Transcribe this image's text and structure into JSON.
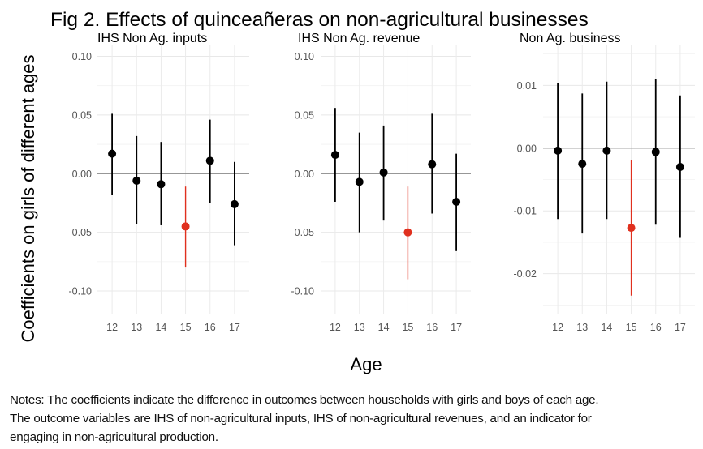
{
  "chart_data": {
    "type": "scatter",
    "subtype": "coefficient-plot-with-confidence-intervals",
    "title": "Fig 2. Effects of quinceañeras on non-agricultural businesses",
    "xlabel": "Age",
    "ylabel": "Coefficients on girls of different ages",
    "highlight_color": "#e0301e",
    "default_color": "#000000",
    "highlight_category": 15,
    "panels": [
      {
        "title": "IHS Non Ag. inputs",
        "x": [
          12,
          13,
          14,
          15,
          16,
          17
        ],
        "ylim": [
          -0.12,
          0.11
        ],
        "yticks": [
          0.1,
          0.05,
          0.0,
          -0.05,
          -0.1
        ],
        "ytick_labels": [
          "0.10",
          "0.05",
          "0.00",
          "-0.05",
          "-0.10"
        ],
        "estimate": [
          0.017,
          -0.006,
          -0.009,
          -0.045,
          0.011,
          -0.026
        ],
        "ci_low": [
          -0.018,
          -0.043,
          -0.044,
          -0.08,
          -0.025,
          -0.061
        ],
        "ci_high": [
          0.051,
          0.032,
          0.027,
          -0.011,
          0.046,
          0.01
        ]
      },
      {
        "title": "IHS Non Ag. revenue",
        "x": [
          12,
          13,
          14,
          15,
          16,
          17
        ],
        "ylim": [
          -0.12,
          0.11
        ],
        "yticks": [
          0.1,
          0.05,
          0.0,
          -0.05,
          -0.1
        ],
        "ytick_labels": [
          "0.10",
          "0.05",
          "0.00",
          "-0.05",
          "-0.10"
        ],
        "estimate": [
          0.016,
          -0.007,
          0.001,
          -0.05,
          0.008,
          -0.024
        ],
        "ci_low": [
          -0.024,
          -0.05,
          -0.04,
          -0.09,
          -0.034,
          -0.066
        ],
        "ci_high": [
          0.056,
          0.035,
          0.041,
          -0.011,
          0.051,
          0.017
        ]
      },
      {
        "title": "Non Ag. business",
        "x": [
          12,
          13,
          14,
          15,
          16,
          17
        ],
        "ylim": [
          -0.0265,
          0.0165
        ],
        "yticks": [
          0.01,
          0.0,
          -0.01,
          -0.02
        ],
        "ytick_labels": [
          "0.01",
          "0.00",
          "-0.01",
          "-0.02"
        ],
        "estimate": [
          -0.0004,
          -0.0025,
          -0.0004,
          -0.0127,
          -0.0006,
          -0.003
        ],
        "ci_low": [
          -0.0113,
          -0.0136,
          -0.0113,
          -0.0235,
          -0.0122,
          -0.0143
        ],
        "ci_high": [
          0.0104,
          0.0087,
          0.0106,
          -0.0019,
          0.011,
          0.0084
        ]
      }
    ],
    "grid": true,
    "reference_line": 0
  },
  "notes": [
    "Notes: The coefficients indicate the difference in outcomes between households with girls and boys of each age.",
    "The outcome variables are IHS of non-agricultural inputs, IHS of non-agricultural revenues, and an indicator for",
    "engaging in non-agricultural production."
  ]
}
